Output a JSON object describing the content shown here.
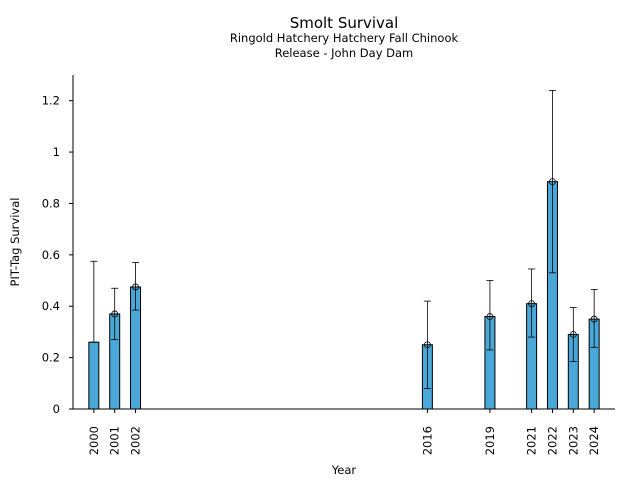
{
  "chart_data": {
    "type": "bar",
    "title": "Smolt Survival",
    "subtitle_line1": "Ringold Hatchery Hatchery Fall Chinook",
    "subtitle_line2": "Release - John Day Dam",
    "xlabel": "Year",
    "ylabel": "PIT-Tag Survival",
    "ylim": [
      0,
      1.3
    ],
    "xlim": [
      1999.0,
      2025.0
    ],
    "yticks": [
      0,
      0.2,
      0.4,
      0.6,
      0.8,
      1.0,
      1.2
    ],
    "ytick_labels": [
      "0",
      "0.2",
      "0.4",
      "0.6",
      "0.8",
      "1",
      "1.2"
    ],
    "grid": false,
    "bar_color": "#4aa8d8",
    "bars": [
      {
        "year": 2000,
        "label": "2000",
        "value": 0.26,
        "err_low": 0.26,
        "err_high": 0.575,
        "marker": false
      },
      {
        "year": 2001,
        "label": "2001",
        "value": 0.37,
        "err_low": 0.27,
        "err_high": 0.47,
        "marker": true
      },
      {
        "year": 2002,
        "label": "2002",
        "value": 0.475,
        "err_low": 0.385,
        "err_high": 0.57,
        "marker": true
      },
      {
        "year": 2016,
        "label": "2016",
        "value": 0.25,
        "err_low": 0.08,
        "err_high": 0.42,
        "marker": true
      },
      {
        "year": 2019,
        "label": "2019",
        "value": 0.36,
        "err_low": 0.23,
        "err_high": 0.5,
        "marker": true
      },
      {
        "year": 2021,
        "label": "2021",
        "value": 0.41,
        "err_low": 0.28,
        "err_high": 0.545,
        "marker": true
      },
      {
        "year": 2022,
        "label": "2022",
        "value": 0.885,
        "err_low": 0.53,
        "err_high": 1.24,
        "marker": true
      },
      {
        "year": 2023,
        "label": "2023",
        "value": 0.29,
        "err_low": 0.185,
        "err_high": 0.395,
        "marker": true
      },
      {
        "year": 2024,
        "label": "2024",
        "value": 0.35,
        "err_low": 0.24,
        "err_high": 0.465,
        "marker": true
      }
    ]
  }
}
